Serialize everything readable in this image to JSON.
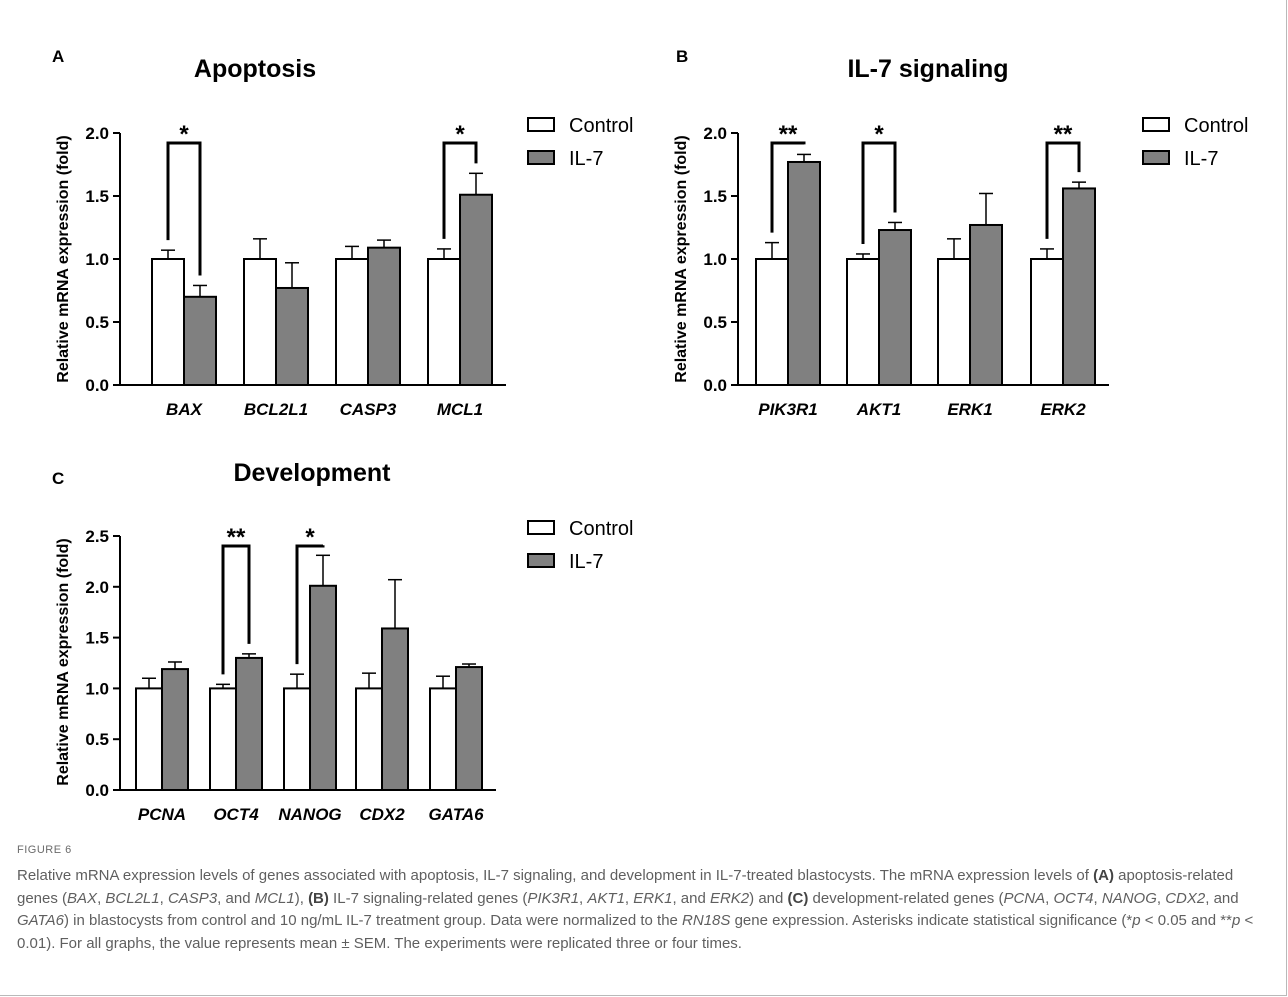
{
  "figure": {
    "label": "FIGURE 6",
    "caption_parts": [
      {
        "t": "Relative mRNA expression levels of genes associated with apoptosis, IL-7 signaling, and development in IL-7-treated blastocysts. The mRNA expression levels of "
      },
      {
        "t": "(A)",
        "s": "b"
      },
      {
        "t": " apoptosis-related genes ("
      },
      {
        "t": "BAX",
        "s": "i"
      },
      {
        "t": ", "
      },
      {
        "t": "BCL2L1",
        "s": "i"
      },
      {
        "t": ", "
      },
      {
        "t": "CASP3",
        "s": "i"
      },
      {
        "t": ", and "
      },
      {
        "t": "MCL1",
        "s": "i"
      },
      {
        "t": "), "
      },
      {
        "t": "(B)",
        "s": "b"
      },
      {
        "t": " IL-7 signaling-related genes ("
      },
      {
        "t": "PIK3R1",
        "s": "i"
      },
      {
        "t": ", "
      },
      {
        "t": "AKT1",
        "s": "i"
      },
      {
        "t": ", "
      },
      {
        "t": "ERK1",
        "s": "i"
      },
      {
        "t": ", and "
      },
      {
        "t": "ERK2",
        "s": "i"
      },
      {
        "t": ") and "
      },
      {
        "t": "(C)",
        "s": "b"
      },
      {
        "t": " development-related genes ("
      },
      {
        "t": "PCNA",
        "s": "i"
      },
      {
        "t": ", "
      },
      {
        "t": "OCT4",
        "s": "i"
      },
      {
        "t": ", "
      },
      {
        "t": "NANOG",
        "s": "i"
      },
      {
        "t": ", "
      },
      {
        "t": "CDX2",
        "s": "i"
      },
      {
        "t": ", and "
      },
      {
        "t": "GATA6",
        "s": "i"
      },
      {
        "t": ") in blastocysts from control and 10 ng/mL IL-7 treatment group. Data were normalized to the "
      },
      {
        "t": "RN18S",
        "s": "i"
      },
      {
        "t": " gene expression. Asterisks indicate statistical significance (*"
      },
      {
        "t": "p",
        "s": "i"
      },
      {
        "t": " < 0.05 and **"
      },
      {
        "t": "p",
        "s": "i"
      },
      {
        "t": " < 0.01). For all graphs, the value represents mean ± SEM. The experiments were replicated three or four times."
      }
    ]
  },
  "colors": {
    "control": "#ffffff",
    "il7": "#808080",
    "ink": "#000000",
    "caption": "#5f5f5f"
  },
  "chart_data": [
    {
      "panel": "A",
      "type": "bar",
      "title": "Apoptosis",
      "ylabel": "Relative mRNA expression (fold)",
      "ylim": [
        0,
        2.0
      ],
      "yticks": [
        "0.0",
        "0.5",
        "1.0",
        "1.5",
        "2.0"
      ],
      "categories": [
        "BAX",
        "BCL2L1",
        "CASP3",
        "MCL1"
      ],
      "series": [
        {
          "name": "Control",
          "values": [
            1.0,
            1.0,
            1.0,
            1.0
          ],
          "errors": [
            0.07,
            0.16,
            0.1,
            0.08
          ]
        },
        {
          "name": "IL-7",
          "values": [
            0.7,
            0.77,
            1.09,
            1.51
          ],
          "errors": [
            0.09,
            0.2,
            0.06,
            0.17
          ]
        }
      ],
      "significance": [
        {
          "category": "BAX",
          "label": "*"
        },
        {
          "category": "MCL1",
          "label": "*"
        }
      ],
      "legend": "right"
    },
    {
      "panel": "B",
      "type": "bar",
      "title": "IL-7 signaling",
      "ylabel": "Relative mRNA expression (fold)",
      "ylim": [
        0,
        2.0
      ],
      "yticks": [
        "0.0",
        "0.5",
        "1.0",
        "1.5",
        "2.0"
      ],
      "categories": [
        "PIK3R1",
        "AKT1",
        "ERK1",
        "ERK2"
      ],
      "series": [
        {
          "name": "Control",
          "values": [
            1.0,
            1.0,
            1.0,
            1.0
          ],
          "errors": [
            0.13,
            0.04,
            0.16,
            0.08
          ]
        },
        {
          "name": "IL-7",
          "values": [
            1.77,
            1.23,
            1.27,
            1.56
          ],
          "errors": [
            0.06,
            0.06,
            0.25,
            0.05
          ]
        }
      ],
      "significance": [
        {
          "category": "PIK3R1",
          "label": "**"
        },
        {
          "category": "AKT1",
          "label": "*"
        },
        {
          "category": "ERK2",
          "label": "**"
        }
      ],
      "legend": "right"
    },
    {
      "panel": "C",
      "type": "bar",
      "title": "Development",
      "ylabel": "Relative mRNA expression (fold)",
      "ylim": [
        0,
        2.5
      ],
      "yticks": [
        "0.0",
        "0.5",
        "1.0",
        "1.5",
        "2.0",
        "2.5"
      ],
      "categories": [
        "PCNA",
        "OCT4",
        "NANOG",
        "CDX2",
        "GATA6"
      ],
      "series": [
        {
          "name": "Control",
          "values": [
            1.0,
            1.0,
            1.0,
            1.0,
            1.0
          ],
          "errors": [
            0.1,
            0.04,
            0.14,
            0.15,
            0.12
          ]
        },
        {
          "name": "IL-7",
          "values": [
            1.19,
            1.3,
            2.01,
            1.59,
            1.21
          ],
          "errors": [
            0.07,
            0.04,
            0.3,
            0.48,
            0.03
          ]
        }
      ],
      "significance": [
        {
          "category": "OCT4",
          "label": "**"
        },
        {
          "category": "NANOG",
          "label": "*"
        }
      ],
      "legend": "right"
    }
  ]
}
